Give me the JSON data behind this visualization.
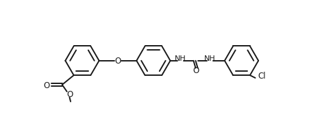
{
  "bg": "#ffffff",
  "lc": "#1a1a1a",
  "lw": 1.4,
  "fs": 8.5,
  "fw": "normal",
  "ring1": [
    78,
    118
  ],
  "ring2": [
    213,
    118
  ],
  "ring3": [
    380,
    118
  ],
  "rr": 32,
  "ao": 0
}
